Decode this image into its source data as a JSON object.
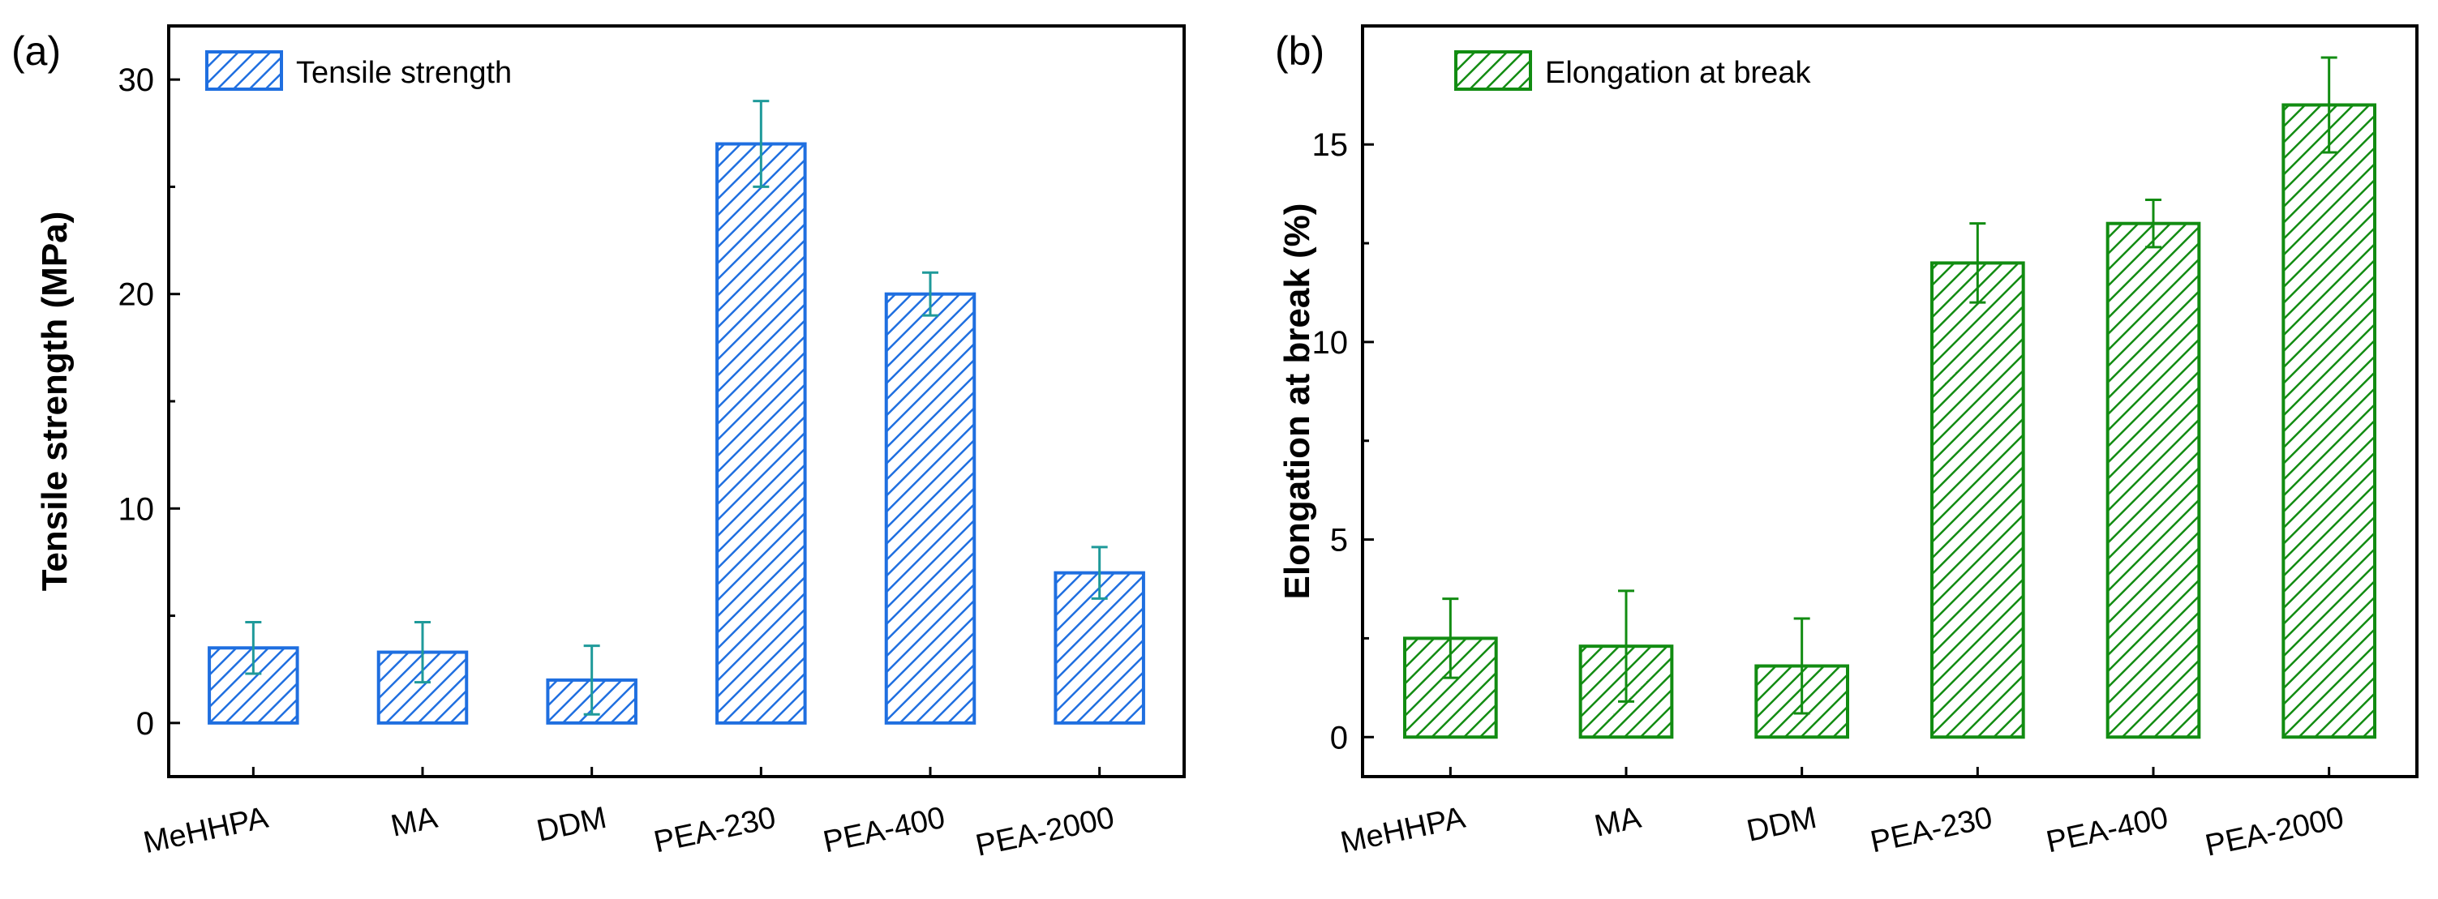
{
  "chart_data": [
    {
      "type": "bar",
      "panel_label": "(a)",
      "title": "",
      "xlabel": "",
      "ylabel": "Tensile strength (MPa)",
      "categories": [
        "MeHHPA",
        "MA",
        "DDM",
        "PEA-230",
        "PEA-400",
        "PEA-2000"
      ],
      "series": [
        {
          "name": "Tensile strength",
          "values": [
            3.5,
            3.3,
            2.0,
            27.0,
            20.0,
            7.0
          ],
          "errors": [
            1.2,
            1.4,
            1.6,
            2.0,
            1.0,
            1.2
          ]
        }
      ],
      "ylim": [
        -2.5,
        32.5
      ],
      "yticks": [
        0,
        10,
        20,
        30
      ],
      "grid": false,
      "legend_position": "top-left",
      "bar_color": "#1f6fe0",
      "error_color": "#1f9a9a"
    },
    {
      "type": "bar",
      "panel_label": "(b)",
      "title": "",
      "xlabel": "",
      "ylabel": "Elongation at break (%)",
      "categories": [
        "MeHHPA",
        "MA",
        "DDM",
        "PEA-230",
        "PEA-400",
        "PEA-2000"
      ],
      "series": [
        {
          "name": "Elongation at break",
          "values": [
            2.5,
            2.3,
            1.8,
            12.0,
            13.0,
            16.0
          ],
          "errors": [
            1.0,
            1.4,
            1.2,
            1.0,
            0.6,
            1.2
          ]
        }
      ],
      "ylim": [
        -1.0,
        18.0
      ],
      "yticks": [
        0,
        5,
        10,
        15
      ],
      "grid": false,
      "legend_position": "top-left",
      "bar_color": "#128c12",
      "error_color": "#128c12"
    }
  ]
}
